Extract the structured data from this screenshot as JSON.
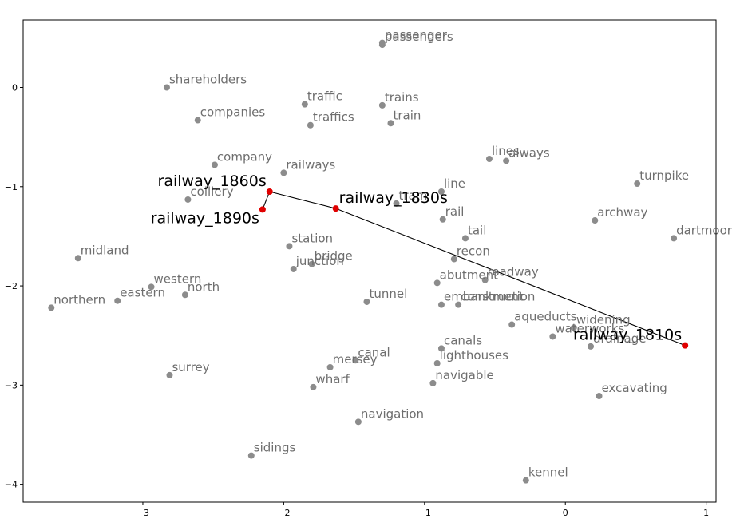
{
  "chart_data": {
    "type": "scatter",
    "title": "",
    "xlabel": "",
    "ylabel": "",
    "xlim": [
      -3.85,
      1.07
    ],
    "ylim": [
      -4.18,
      0.68
    ],
    "x_ticks": [
      -3,
      -2,
      -1,
      0,
      1
    ],
    "y_ticks": [
      -4,
      -3,
      -2,
      -1,
      0
    ],
    "x_tick_labels": [
      "−3",
      "−2",
      "−1",
      "0",
      "1"
    ],
    "y_tick_labels": [
      "−4",
      "−3",
      "−2",
      "−1",
      "0"
    ],
    "grid": false,
    "colors": {
      "word_point": "#8c8c8c",
      "word_text": "#6e6e6e",
      "highlight_point": "#e00000",
      "highlight_text": "#000000",
      "path_line": "#000000"
    },
    "points": [
      {
        "label": "passenger",
        "x": -1.3,
        "y": 0.45
      },
      {
        "label": "passengers",
        "x": -1.3,
        "y": 0.43
      },
      {
        "label": "shareholders",
        "x": -2.83,
        "y": 0.0
      },
      {
        "label": "traffic",
        "x": -1.85,
        "y": -0.17
      },
      {
        "label": "trains",
        "x": -1.3,
        "y": -0.18
      },
      {
        "label": "companies",
        "x": -2.61,
        "y": -0.33
      },
      {
        "label": "traffics",
        "x": -1.81,
        "y": -0.38
      },
      {
        "label": "train",
        "x": -1.24,
        "y": -0.36
      },
      {
        "label": "lines",
        "x": -0.54,
        "y": -0.72
      },
      {
        "label": "always",
        "x": -0.42,
        "y": -0.74
      },
      {
        "label": "company",
        "x": -2.49,
        "y": -0.78
      },
      {
        "label": "railways",
        "x": -2.0,
        "y": -0.86
      },
      {
        "label": "turnpike",
        "x": 0.51,
        "y": -0.97
      },
      {
        "label": "line",
        "x": -0.88,
        "y": -1.05
      },
      {
        "label": "colliery",
        "x": -2.68,
        "y": -1.13
      },
      {
        "label": "tram",
        "x": -1.2,
        "y": -1.17
      },
      {
        "label": "rail",
        "x": -0.87,
        "y": -1.33
      },
      {
        "label": "archway",
        "x": 0.21,
        "y": -1.34
      },
      {
        "label": "dartmoor",
        "x": 0.77,
        "y": -1.52
      },
      {
        "label": "tail",
        "x": -0.71,
        "y": -1.52
      },
      {
        "label": "midland",
        "x": -3.46,
        "y": -1.72
      },
      {
        "label": "station",
        "x": -1.96,
        "y": -1.6
      },
      {
        "label": "bridge",
        "x": -1.8,
        "y": -1.78
      },
      {
        "label": "recon",
        "x": -0.79,
        "y": -1.73
      },
      {
        "label": "junction",
        "x": -1.93,
        "y": -1.83
      },
      {
        "label": "roadway",
        "x": -0.57,
        "y": -1.94
      },
      {
        "label": "western",
        "x": -2.94,
        "y": -2.01
      },
      {
        "label": "north",
        "x": -2.7,
        "y": -2.09
      },
      {
        "label": "abutment",
        "x": -0.91,
        "y": -1.97
      },
      {
        "label": "tunnel",
        "x": -1.41,
        "y": -2.16
      },
      {
        "label": "northern",
        "x": -3.65,
        "y": -2.22
      },
      {
        "label": "eastern",
        "x": -3.18,
        "y": -2.15
      },
      {
        "label": "embankment",
        "x": -0.88,
        "y": -2.19
      },
      {
        "label": "construction",
        "x": -0.76,
        "y": -2.19
      },
      {
        "label": "aqueducts",
        "x": -0.38,
        "y": -2.39
      },
      {
        "label": "widening",
        "x": 0.06,
        "y": -2.42
      },
      {
        "label": "waterworks",
        "x": -0.09,
        "y": -2.51
      },
      {
        "label": "drainage",
        "x": 0.18,
        "y": -2.61
      },
      {
        "label": "canals",
        "x": -0.88,
        "y": -2.63
      },
      {
        "label": "canal",
        "x": -1.49,
        "y": -2.75
      },
      {
        "label": "lighthouses",
        "x": -0.91,
        "y": -2.78
      },
      {
        "label": "mersey",
        "x": -1.67,
        "y": -2.82
      },
      {
        "label": "navigable",
        "x": -0.94,
        "y": -2.98
      },
      {
        "label": "surrey",
        "x": -2.81,
        "y": -2.9
      },
      {
        "label": "wharf",
        "x": -1.79,
        "y": -3.02
      },
      {
        "label": "excavating",
        "x": 0.24,
        "y": -3.11
      },
      {
        "label": "navigation",
        "x": -1.47,
        "y": -3.37
      },
      {
        "label": "sidings",
        "x": -2.23,
        "y": -3.71
      },
      {
        "label": "kennel",
        "x": -0.28,
        "y": -3.96
      }
    ],
    "series": [
      {
        "points": [
          {
            "label": "railway_1810s",
            "x": 0.85,
            "y": -2.6
          },
          {
            "label": "railway_1830s",
            "x": -1.63,
            "y": -1.22
          },
          {
            "label": "railway_1860s",
            "x": -2.1,
            "y": -1.05
          },
          {
            "label": "railway_1890s",
            "x": -2.15,
            "y": -1.23
          }
        ]
      }
    ]
  }
}
